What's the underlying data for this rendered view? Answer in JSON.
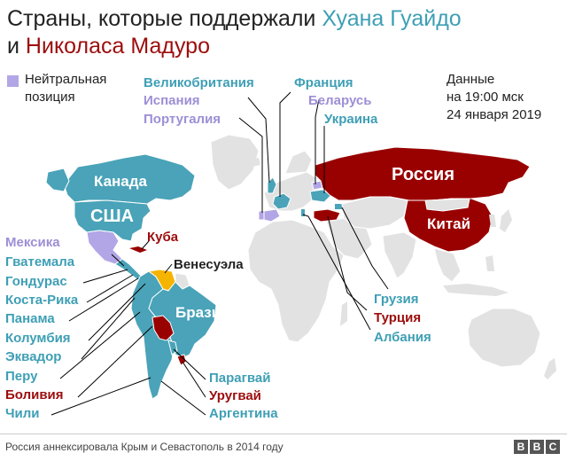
{
  "title": {
    "part1": "Страны, которые поддержали ",
    "guaido": "Хуана Гуайдо",
    "part2": "и ",
    "maduro": "Николаса Мадуро"
  },
  "legend": {
    "neutral": "Нейтральная позиция"
  },
  "data_note": [
    "Данные",
    "на 19:00 мск",
    "24 января 2019"
  ],
  "colors": {
    "guaido": "#4aa3b8",
    "maduro": "#990000",
    "neutral": "#b2a6e6",
    "venezuela": "#f5b400",
    "land": "#e2e2e2"
  },
  "countries": {
    "uk": "Великобритания",
    "spain": "Испания",
    "portugal": "Португалия",
    "france": "Франция",
    "belarus": "Беларусь",
    "ukraine": "Украина",
    "russia": "Россия",
    "china": "Китай",
    "canada": "Канада",
    "usa": "США",
    "mexico": "Мексика",
    "cuba": "Куба",
    "guatemala": "Гватемала",
    "honduras": "Гондурас",
    "costa_rica": "Коста-Рика",
    "panama": "Панама",
    "colombia": "Колумбия",
    "ecuador": "Эквадор",
    "peru": "Перу",
    "bolivia": "Боливия",
    "chile": "Чили",
    "venezuela": "Венесуэла",
    "brazil": "Бразилия",
    "paraguay": "Парагвай",
    "uruguay": "Уругвай",
    "argentina": "Аргентина",
    "georgia": "Грузия",
    "turkey": "Турция",
    "albania": "Албания"
  },
  "footer": {
    "note": "Россия аннексировала Крым и Севастополь в 2014 году",
    "brand": [
      "B",
      "B",
      "C"
    ]
  }
}
